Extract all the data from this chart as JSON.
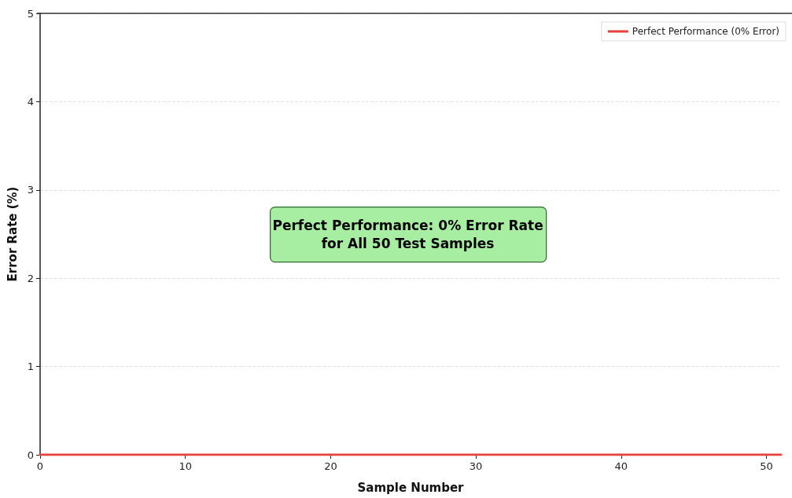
{
  "chart_data": {
    "type": "line",
    "xlabel": "Sample Number",
    "ylabel": "Error Rate (%)",
    "x": [
      0,
      51
    ],
    "series": [
      {
        "name": "Perfect Performance (0% Error)",
        "color": "#e8413c",
        "values": [
          0,
          0
        ]
      }
    ],
    "xlim": [
      0,
      51
    ],
    "xticks": [
      0,
      10,
      20,
      30,
      40,
      50
    ],
    "ylim": [
      0,
      5
    ],
    "yticks": [
      0,
      1,
      2,
      3,
      4,
      5
    ],
    "grid": "y",
    "legend": "top right",
    "marker": "none",
    "line_style": "solid",
    "annotations": [
      "Perfect Performance: 0% Error Rate\nfor All 50 Test Samples"
    ]
  }
}
